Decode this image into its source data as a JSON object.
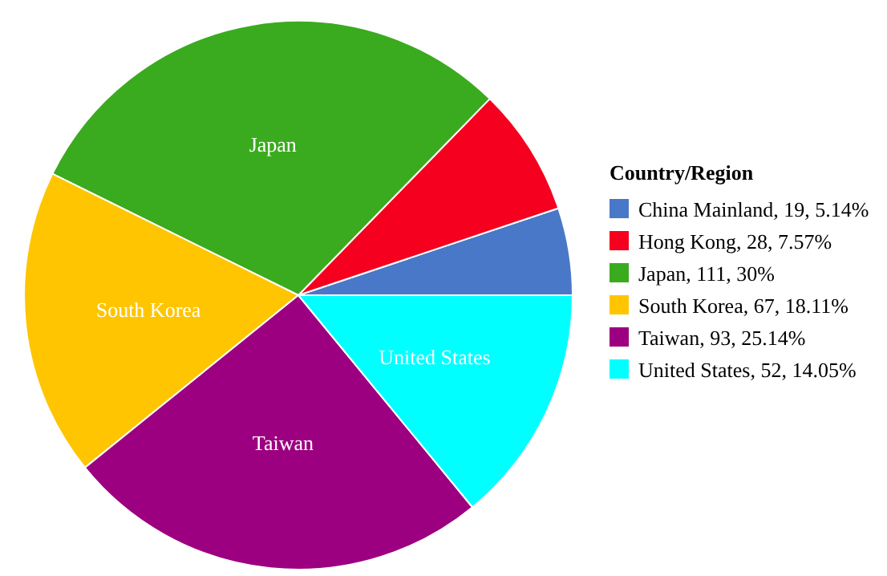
{
  "chart_data": {
    "type": "pie",
    "legend_title": "Country/Region",
    "legend": "right",
    "categories": [
      "China Mainland",
      "Hong Kong",
      "Japan",
      "South Korea",
      "Taiwan",
      "United States"
    ],
    "values": [
      19,
      28,
      111,
      67,
      93,
      52
    ],
    "value_labels": [
      ", 19, 5.14%",
      ", 28, 7.57%",
      ", 111, 30%",
      ", 67, 18.11%",
      ", 93, 25.14%",
      ", 52, 14.05%"
    ],
    "colors": [
      "#4a78c8",
      "#f5001e",
      "#3aab1e",
      "#ffc500",
      "#9c0080",
      "#00ffff"
    ]
  }
}
